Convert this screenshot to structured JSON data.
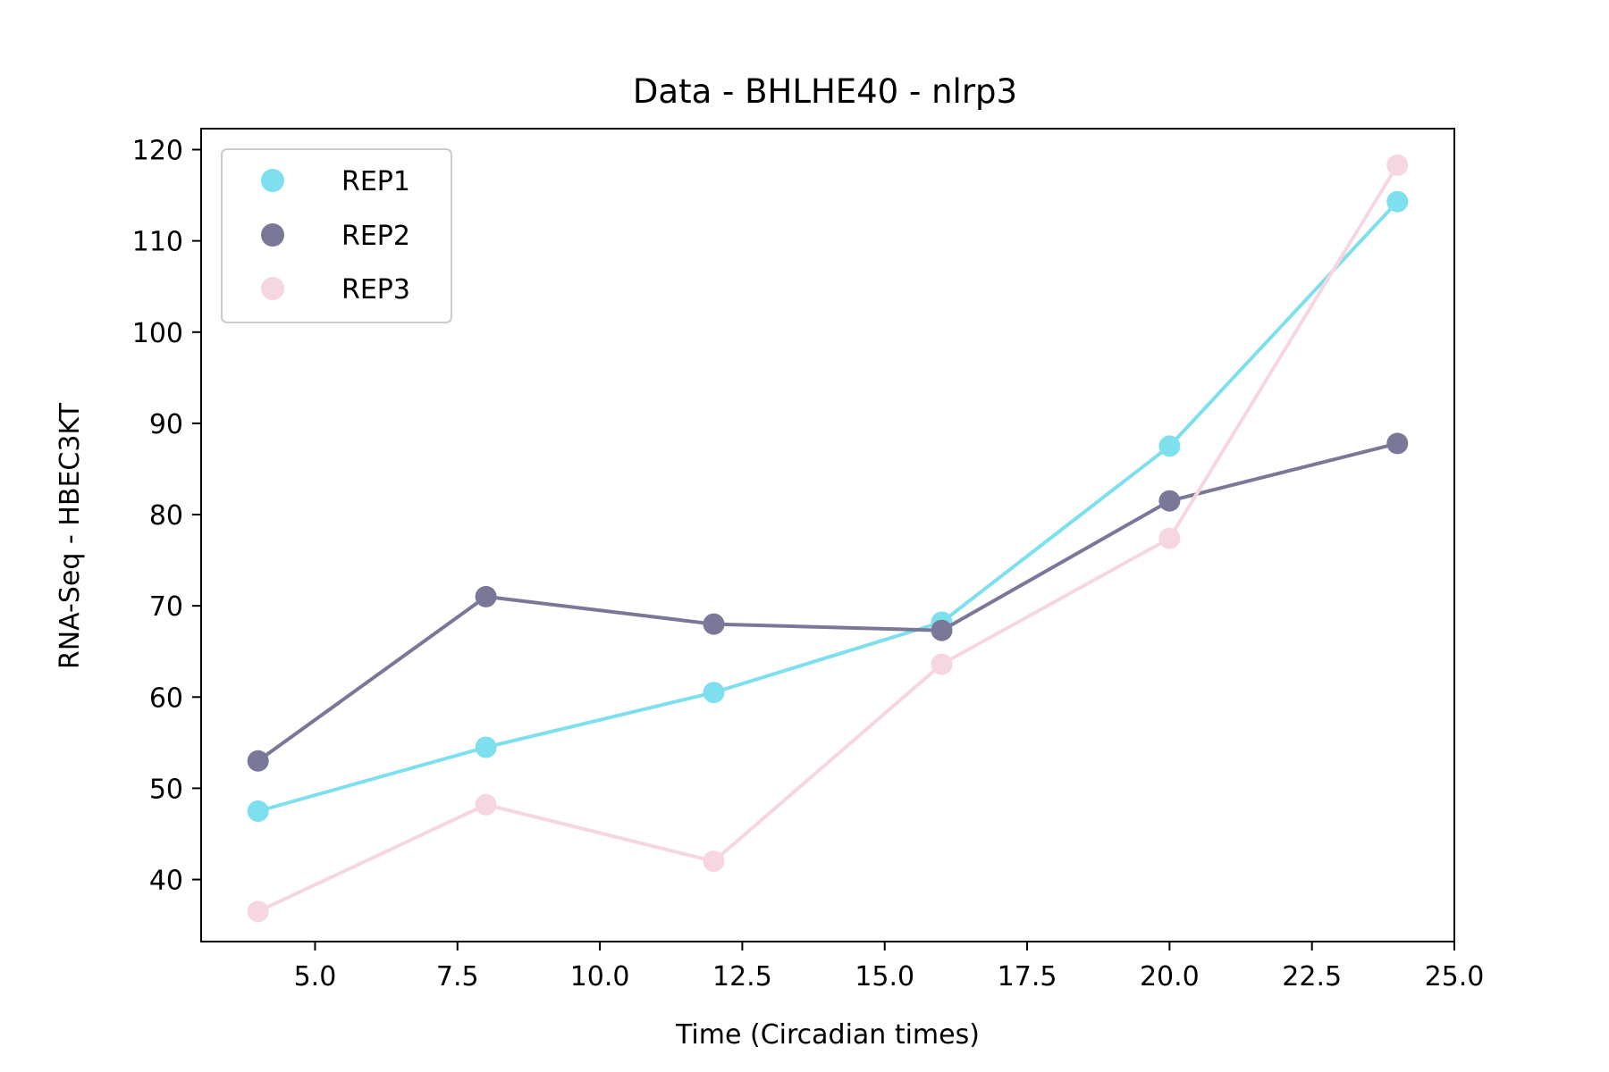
{
  "chart_data": {
    "type": "line",
    "title": "Data - BHLHE40 - nlrp3",
    "xlabel": "Time (Circadian times)",
    "ylabel": "RNA-Seq - HBEC3KT",
    "x": [
      4,
      8,
      12,
      16,
      20,
      24
    ],
    "xlim": [
      3,
      25
    ],
    "ylim": [
      33.2,
      122.3
    ],
    "xticks": [
      "5.0",
      "7.5",
      "10.0",
      "12.5",
      "15.0",
      "17.5",
      "20.0",
      "22.5",
      "25.0"
    ],
    "yticks": [
      "40",
      "50",
      "60",
      "70",
      "80",
      "90",
      "100",
      "110",
      "120"
    ],
    "grid": false,
    "legend_position": "upper-left",
    "series": [
      {
        "name": "REP1",
        "color": "#7edfee",
        "values": [
          47.5,
          54.5,
          60.5,
          68.2,
          87.5,
          114.3
        ]
      },
      {
        "name": "REP2",
        "color": "#7a7898",
        "values": [
          53.0,
          71.0,
          68.0,
          67.3,
          81.5,
          87.8
        ]
      },
      {
        "name": "REP3",
        "color": "#f6d6e0",
        "values": [
          36.5,
          48.2,
          42.0,
          63.6,
          77.4,
          118.3
        ]
      }
    ]
  }
}
